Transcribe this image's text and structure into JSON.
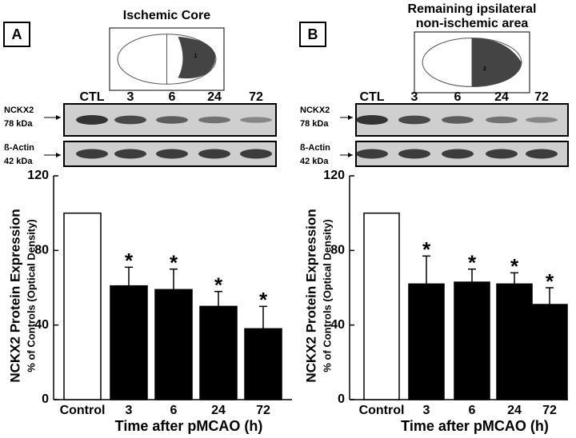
{
  "chart_data": [
    {
      "type": "bar",
      "panel": "A",
      "region_title": [
        "Ischemic Core"
      ],
      "region_number": "1",
      "lanes": [
        "CTL",
        "3",
        "6",
        "24",
        "72"
      ],
      "blot_rows": [
        [
          "NCKX2",
          "78 kDa"
        ],
        [
          "ß-Actin",
          "42 kDa"
        ]
      ],
      "y_label": "NCKX2  Protein Expression",
      "y_sublabel": "% of Controls (Optical Density)",
      "x_label": "Time after pMCAO (h)",
      "categories": [
        "Control",
        "3",
        "6",
        "24",
        "72"
      ],
      "values": [
        100,
        61,
        59,
        50,
        38
      ],
      "errors": [
        null,
        10,
        11,
        8,
        12
      ],
      "annotations": [
        null,
        "*",
        "*",
        "*",
        "*"
      ],
      "colors": [
        "#ffffff",
        "#000000",
        "#000000",
        "#000000",
        "#000000"
      ],
      "ylim": [
        0,
        120
      ],
      "yticks": [
        0,
        40,
        80,
        120
      ]
    },
    {
      "type": "bar",
      "panel": "B",
      "region_title": [
        "Remaining ipsilateral",
        "non-ischemic area"
      ],
      "region_number": "2",
      "lanes": [
        "CTL",
        "3",
        "6",
        "24",
        "72"
      ],
      "blot_rows": [
        [
          "NCKX2",
          "78 kDa"
        ],
        [
          "ß-Actin",
          "42 kDa"
        ]
      ],
      "y_label": "NCKX2  Protein Expression",
      "y_sublabel": "% of Controls (Optical Density)",
      "x_label": "Time after pMCAO (h)",
      "categories": [
        "Control",
        "3",
        "6",
        "24",
        "72"
      ],
      "values": [
        100,
        62,
        63,
        62,
        51
      ],
      "errors": [
        null,
        15,
        7,
        6,
        9
      ],
      "annotations": [
        null,
        "*",
        "*",
        "*",
        "*"
      ],
      "colors": [
        "#ffffff",
        "#000000",
        "#000000",
        "#000000",
        "#000000"
      ],
      "ylim": [
        0,
        120
      ],
      "yticks": [
        0,
        40,
        80,
        120
      ]
    }
  ]
}
